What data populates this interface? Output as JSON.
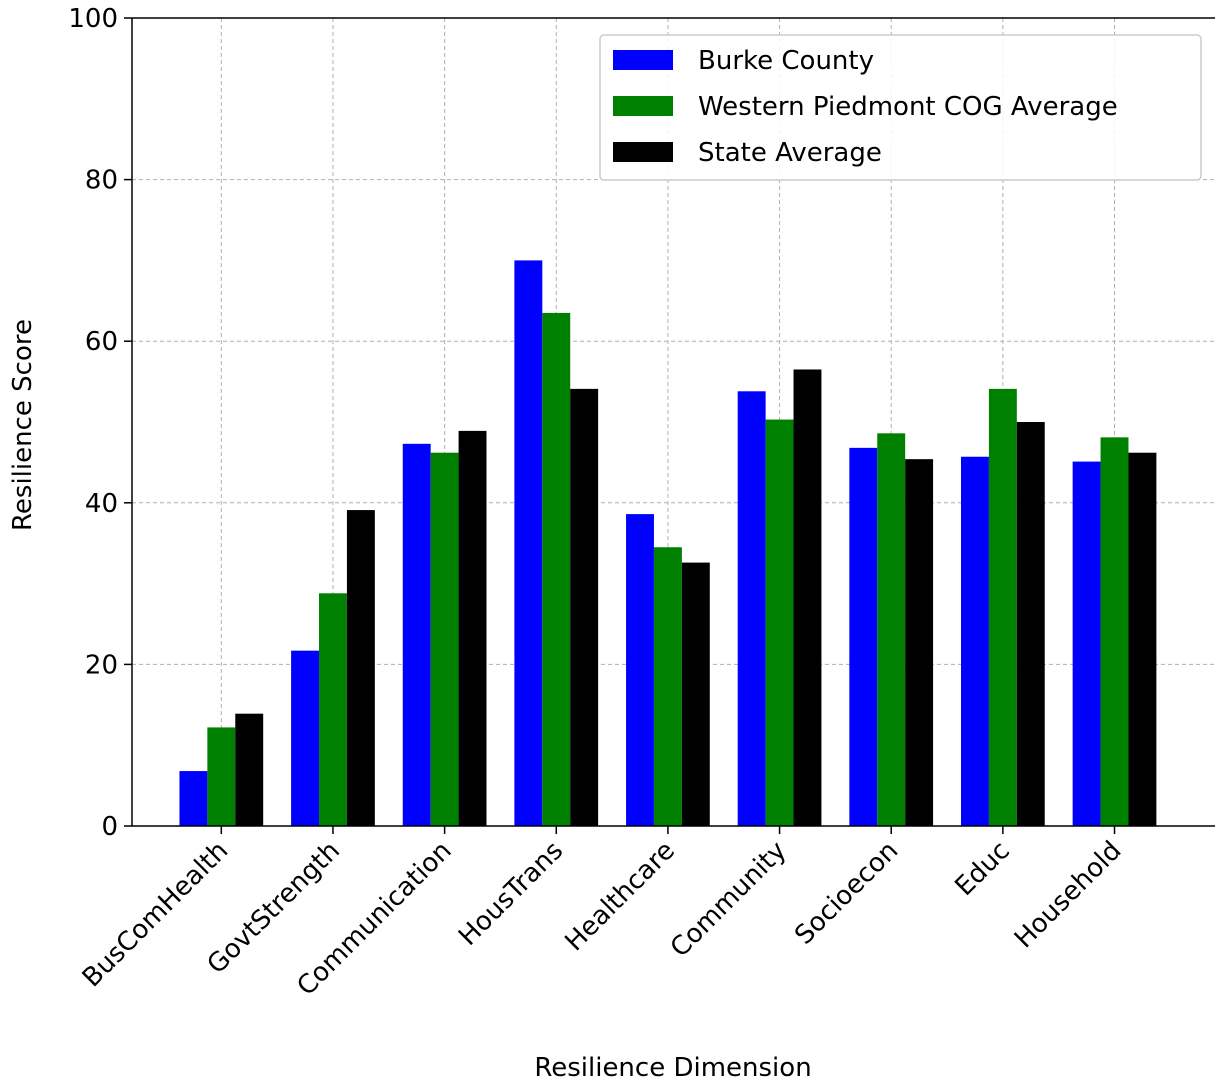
{
  "chart_data": {
    "type": "bar",
    "xlabel": "Resilience Dimension",
    "ylabel": "Resilience Score",
    "ylim": [
      0,
      100
    ],
    "yticks": [
      0,
      20,
      40,
      60,
      80,
      100
    ],
    "grid": true,
    "legend_position": "top-right",
    "categories": [
      "BusComHealth",
      "GovtStrength",
      "Communication",
      "HousTrans",
      "Healthcare",
      "Community",
      "Socioecon",
      "Educ",
      "Household"
    ],
    "series": [
      {
        "name": "Burke County",
        "color": "#0000ff",
        "values": [
          6.8,
          21.7,
          47.3,
          70.0,
          38.6,
          53.8,
          46.8,
          45.7,
          45.1
        ]
      },
      {
        "name": "Western Piedmont COG Average",
        "color": "#008000",
        "values": [
          12.2,
          28.8,
          46.2,
          63.5,
          34.5,
          50.3,
          48.6,
          54.1,
          48.1
        ]
      },
      {
        "name": "State Average",
        "color": "#000000",
        "values": [
          13.9,
          39.1,
          48.9,
          54.1,
          32.6,
          56.5,
          45.4,
          50.0,
          46.2
        ]
      }
    ]
  }
}
